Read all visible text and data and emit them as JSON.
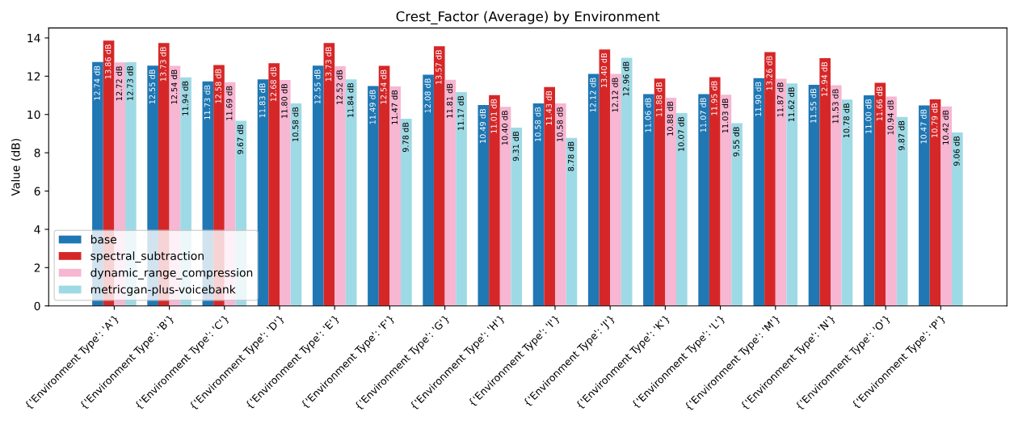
{
  "chart_data": {
    "type": "bar",
    "title": "Crest_Factor (Average) by Environment",
    "ylabel": "Value (dB)",
    "categories": [
      "{'Environment Type': 'A'}",
      "{'Environment Type': 'B'}",
      "{'Environment Type': 'C'}",
      "{'Environment Type': 'D'}",
      "{'Environment Type': 'E'}",
      "{'Environment Type': 'F'}",
      "{'Environment Type': 'G'}",
      "{'Environment Type': 'H'}",
      "{'Environment Type': 'I'}",
      "{'Environment Type': 'J'}",
      "{'Environment Type': 'K'}",
      "{'Environment Type': 'L'}",
      "{'Environment Type': 'M'}",
      "{'Environment Type': 'N'}",
      "{'Environment Type': 'O'}",
      "{'Environment Type': 'P'}"
    ],
    "series": [
      {
        "name": "base",
        "color": "#1f77b4",
        "values": [
          12.74,
          12.55,
          11.73,
          11.83,
          12.55,
          11.49,
          12.08,
          10.49,
          10.58,
          12.12,
          11.06,
          11.07,
          11.9,
          11.55,
          11.0,
          10.47
        ],
        "value_labels": [
          "12.74 dB",
          "12.55 dB",
          "11.73 dB",
          "11.83 dB",
          "12.55 dB",
          "11.49 dB",
          "12.08 dB",
          "10.49 dB",
          "10.58 dB",
          "12.12 dB",
          "11.06 dB",
          "11.07 dB",
          "11.90 dB",
          "11.55 dB",
          "11.00 dB",
          "10.47 dB"
        ]
      },
      {
        "name": "spectral_subtraction",
        "color": "#d62728",
        "values": [
          13.86,
          13.73,
          12.58,
          12.68,
          13.73,
          12.54,
          13.57,
          11.01,
          11.43,
          13.4,
          11.88,
          11.95,
          13.26,
          12.94,
          11.66,
          10.79
        ],
        "value_labels": [
          "13.86 dB",
          "13.73 dB",
          "12.58 dB",
          "12.68 dB",
          "13.73 dB",
          "12.54 dB",
          "13.57 dB",
          "11.01 dB",
          "11.43 dB",
          "13.40 dB",
          "11.88 dB",
          "11.95 dB",
          "13.26 dB",
          "12.94 dB",
          "11.66 dB",
          "10.79 dB"
        ]
      },
      {
        "name": "dynamic_range_compression",
        "color": "#f7b6d2",
        "values": [
          12.72,
          12.54,
          11.69,
          11.8,
          12.52,
          11.47,
          11.81,
          10.4,
          10.58,
          12.12,
          10.88,
          11.03,
          11.87,
          11.53,
          10.94,
          10.42
        ],
        "value_labels": [
          "12.72 dB",
          "12.54 dB",
          "11.69 dB",
          "11.80 dB",
          "12.52 dB",
          "11.47 dB",
          "11.81 dB",
          "10.40 dB",
          "10.58 dB",
          "12.12 dB",
          "10.88 dB",
          "11.03 dB",
          "11.87 dB",
          "11.53 dB",
          "10.94 dB",
          "10.42 dB"
        ]
      },
      {
        "name": "metricgan-plus-voicebank",
        "color": "#9edae5",
        "values": [
          12.73,
          11.94,
          9.67,
          10.58,
          11.84,
          9.78,
          11.17,
          9.31,
          8.78,
          12.96,
          10.07,
          9.55,
          11.62,
          10.78,
          9.87,
          9.06
        ],
        "value_labels": [
          "12.73 dB",
          "11.94 dB",
          "9.67 dB",
          "10.58 dB",
          "11.84 dB",
          "9.78 dB",
          "11.17 dB",
          "9.31 dB",
          "8.78 dB",
          "12.96 dB",
          "10.07 dB",
          "9.55 dB",
          "11.62 dB",
          "10.78 dB",
          "9.87 dB",
          "9.06 dB"
        ]
      }
    ],
    "ylim": [
      0,
      14.52
    ],
    "yticks": [
      0,
      2,
      4,
      6,
      8,
      10,
      12,
      14
    ],
    "legend": "lower left",
    "grid": false
  }
}
